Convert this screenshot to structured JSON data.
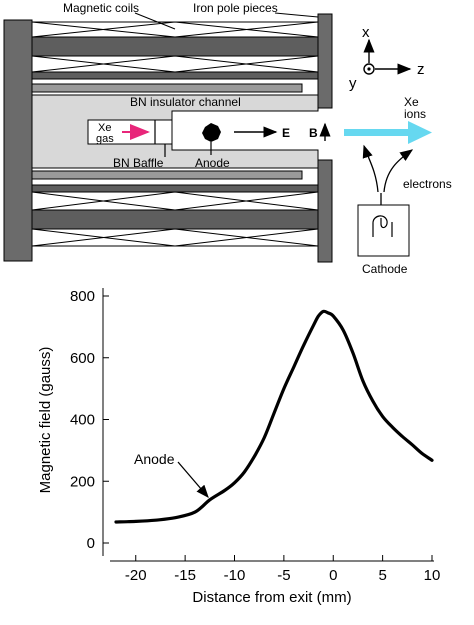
{
  "diagram": {
    "labels": {
      "magnetic_coils": "Magnetic coils",
      "iron_pole_pieces": "Iron pole pieces",
      "bn_insulator_channel": "BN insulator channel",
      "xe_gas_1": "Xe",
      "xe_gas_2": "gas",
      "bn_baffle": "BN Baffle",
      "anode": "Anode",
      "e_field": "E",
      "b_field": "B",
      "xe_ions_1": "Xe",
      "xe_ions_2": "ions",
      "electrons": "electrons",
      "cathode": "Cathode",
      "axis_x": "x",
      "axis_y": "y",
      "axis_z": "z"
    },
    "colors": {
      "gas_arrow": "#e8267a",
      "ion_beam": "#66d8f0",
      "pole_piece": "#6b6b6b",
      "coil_bar": "#5e5e5e",
      "channel_fill": "#d8d8d8"
    }
  },
  "chart_data": {
    "type": "line",
    "xlabel": "Distance from exit (mm)",
    "ylabel": "Magnetic field (gauss)",
    "xlim": [
      -22,
      10
    ],
    "ylim": [
      0,
      800
    ],
    "xticks": [
      "-20",
      "-15",
      "-10",
      "-5",
      "0",
      "5",
      "10"
    ],
    "xtick_values": [
      -20,
      -15,
      -10,
      -5,
      0,
      5,
      10
    ],
    "yticks": [
      "0",
      "200",
      "400",
      "600",
      "800"
    ],
    "ytick_values": [
      0,
      200,
      400,
      600,
      800
    ],
    "grid": false,
    "annotation": {
      "text": "Anode",
      "x": -12.5,
      "y": 140
    },
    "x": [
      -22,
      -20,
      -18,
      -16,
      -14,
      -12.5,
      -11,
      -10,
      -9,
      -8,
      -7,
      -6,
      -5,
      -4,
      -3,
      -2,
      -1.5,
      -1,
      -0.5,
      0,
      1,
      2,
      3,
      4,
      5,
      6,
      7,
      8,
      9,
      10
    ],
    "y": [
      68,
      70,
      74,
      82,
      100,
      140,
      170,
      195,
      230,
      280,
      340,
      420,
      500,
      570,
      640,
      705,
      735,
      750,
      745,
      735,
      690,
      615,
      525,
      460,
      410,
      375,
      345,
      318,
      290,
      268
    ]
  }
}
